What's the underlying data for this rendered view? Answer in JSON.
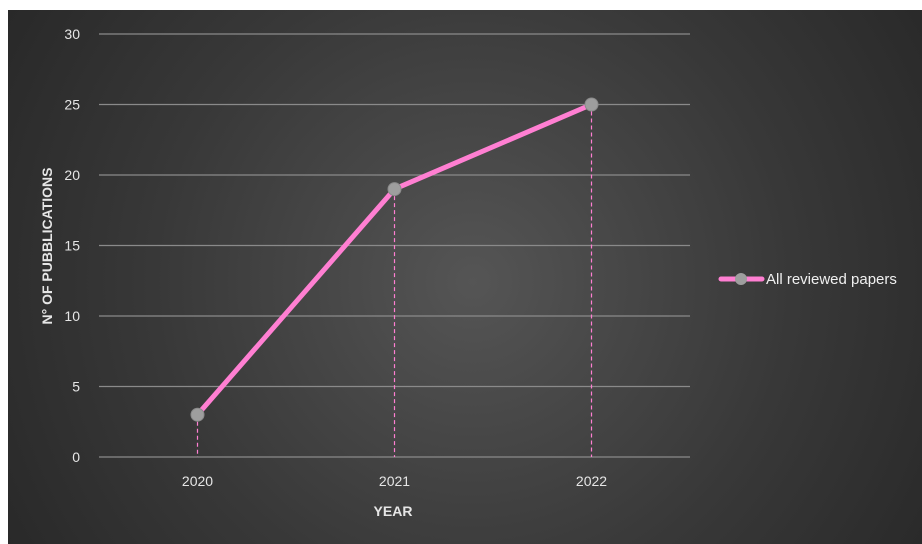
{
  "chart_data": {
    "type": "line",
    "title": "",
    "xlabel": "YEAR",
    "ylabel": "N° OF PUBBLICATIONS",
    "categories": [
      "2020",
      "2021",
      "2022"
    ],
    "series": [
      {
        "name": "All reviewed papers",
        "values": [
          3,
          19,
          25
        ]
      }
    ],
    "ylim": [
      0,
      30
    ],
    "yticks": [
      0,
      5,
      10,
      15,
      20,
      25,
      30
    ],
    "grid": true,
    "drop_lines": true,
    "legend_position": "right",
    "colors": {
      "line": "#ff7fd2",
      "marker": "#9e9e9e",
      "gridline": "#8a8a8a",
      "drop_line": "#ff7fd2",
      "background": "#404040"
    }
  }
}
